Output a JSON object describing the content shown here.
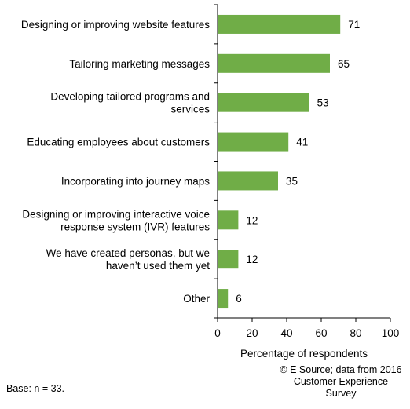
{
  "chart_data": {
    "type": "bar",
    "orientation": "horizontal",
    "categories": [
      "Designing or improving website features",
      "Tailoring marketing messages",
      "Developing tailored programs and|services",
      "Educating employees about customers",
      "Incorporating into journey maps",
      "Designing or improving interactive voice|response system (IVR) features",
      "We have created personas, but we|haven’t used them yet",
      "Other"
    ],
    "values": [
      71,
      65,
      53,
      41,
      35,
      12,
      12,
      6
    ],
    "xlabel": "Percentage of respondents",
    "xlim": [
      0,
      100
    ],
    "xticks": [
      0,
      20,
      40,
      60,
      80,
      100
    ],
    "grid": false,
    "bar_color": "#70ad47",
    "data_labels": true
  },
  "footer": {
    "source": "© E Source; data from 2016 Customer Experience Survey",
    "base": "Base: n = 33."
  }
}
